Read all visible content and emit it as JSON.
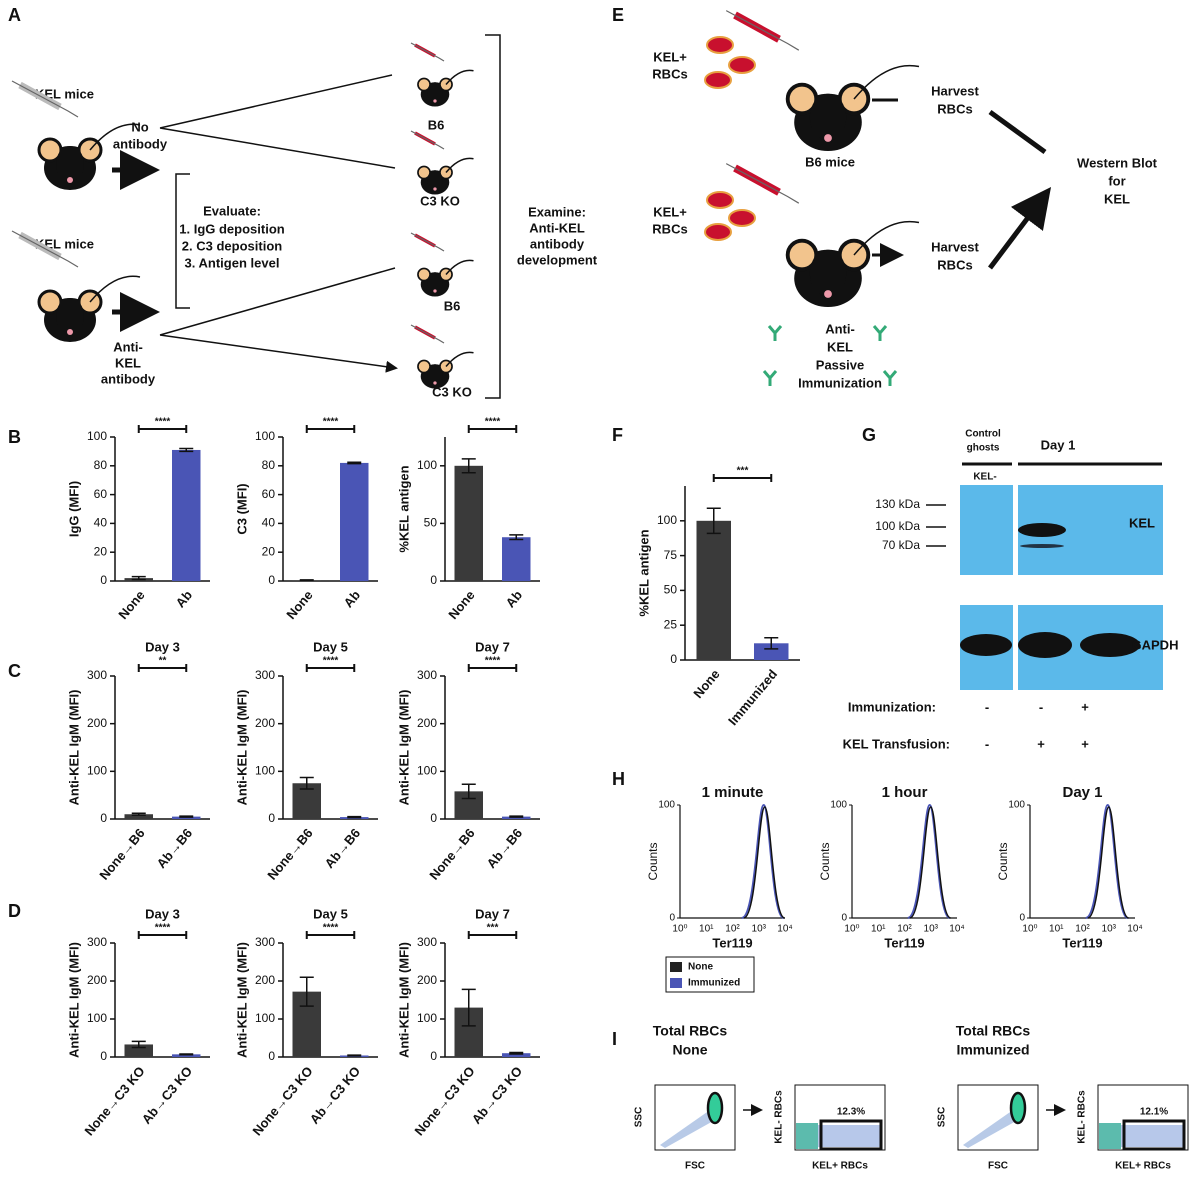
{
  "panel_labels": [
    "A",
    "B",
    "C",
    "D",
    "E",
    "F",
    "G",
    "H",
    "I"
  ],
  "panel_a": {
    "kel_mice": "KEL mice",
    "no_antibody": [
      "No",
      "antibody"
    ],
    "anti_kel_antibody": [
      "Anti-",
      "KEL",
      "antibody"
    ],
    "evaluate": [
      "Evaluate:",
      "1. IgG deposition",
      "2. C3 deposition",
      "3. Antigen level"
    ],
    "groups": [
      "B6",
      "C3 KO",
      "B6",
      "C3 KO"
    ],
    "examine": [
      "Examine:",
      "Anti-KEL",
      "antibody",
      "development"
    ]
  },
  "panel_e": {
    "kel_rbcs": [
      "KEL+",
      "RBCs"
    ],
    "b6_mice": "B6 mice",
    "harvest": [
      "Harvest",
      "RBCs"
    ],
    "western": [
      "Western Blot",
      "for",
      "KEL"
    ],
    "immunization": [
      "Anti-",
      "KEL",
      "Passive",
      "Immunization"
    ]
  },
  "chart_data": [
    {
      "type": "bar",
      "ylabel": "IgG (MFI)",
      "categories": [
        "None",
        "Ab"
      ],
      "values": [
        2,
        91
      ],
      "errors": [
        1,
        1
      ],
      "colors": [
        "#3a3a3a",
        "#4a55b5"
      ],
      "ylim": [
        0,
        100
      ],
      "yticks": [
        0,
        20,
        40,
        60,
        80,
        100
      ],
      "significance": "****"
    },
    {
      "type": "bar",
      "ylabel": "C3 (MFI)",
      "categories": [
        "None",
        "Ab"
      ],
      "values": [
        0.5,
        82
      ],
      "errors": [
        0.3,
        0.5
      ],
      "colors": [
        "#3a3a3a",
        "#4a55b5"
      ],
      "ylim": [
        0,
        100
      ],
      "yticks": [
        0,
        20,
        40,
        60,
        80,
        100
      ],
      "significance": "****"
    },
    {
      "type": "bar",
      "ylabel": "%KEL antigen",
      "categories": [
        "None",
        "Ab"
      ],
      "values": [
        100,
        38
      ],
      "errors": [
        6,
        2
      ],
      "colors": [
        "#3a3a3a",
        "#4a55b5"
      ],
      "ylim": [
        0,
        125
      ],
      "yticks": [
        0,
        50,
        100
      ],
      "significance": "****"
    },
    {
      "type": "bar",
      "title": "Day 3",
      "ylabel": "Anti-KEL IgM (MFI)",
      "categories": [
        "None→B6",
        "Ab→B6"
      ],
      "values": [
        10,
        5
      ],
      "errors": [
        2,
        1
      ],
      "colors": [
        "#3a3a3a",
        "#4a55b5"
      ],
      "ylim": [
        0,
        300
      ],
      "yticks": [
        0,
        100,
        200,
        300
      ],
      "significance": "**"
    },
    {
      "type": "bar",
      "title": "Day 5",
      "ylabel": "Anti-KEL IgM (MFI)",
      "categories": [
        "None→B6",
        "Ab→B6"
      ],
      "values": [
        75,
        4
      ],
      "errors": [
        12,
        1
      ],
      "colors": [
        "#3a3a3a",
        "#4a55b5"
      ],
      "ylim": [
        0,
        300
      ],
      "yticks": [
        0,
        100,
        200,
        300
      ],
      "significance": "****"
    },
    {
      "type": "bar",
      "title": "Day 7",
      "ylabel": "Anti-KEL  IgM (MFI)",
      "categories": [
        "None→B6",
        "Ab→B6"
      ],
      "values": [
        58,
        5
      ],
      "errors": [
        15,
        1
      ],
      "colors": [
        "#3a3a3a",
        "#4a55b5"
      ],
      "ylim": [
        0,
        300
      ],
      "yticks": [
        0,
        100,
        200,
        300
      ],
      "significance": "****"
    },
    {
      "type": "bar",
      "title": "Day 3",
      "ylabel": "Anti-KEL IgM (MFI)",
      "categories": [
        "None→C3 KO",
        "Ab→C3 KO"
      ],
      "values": [
        33,
        7
      ],
      "errors": [
        8,
        1
      ],
      "colors": [
        "#3a3a3a",
        "#4a55b5"
      ],
      "ylim": [
        0,
        300
      ],
      "yticks": [
        0,
        100,
        200,
        300
      ],
      "significance": "****"
    },
    {
      "type": "bar",
      "title": "Day 5",
      "ylabel": "Anti-KEL IgM (MFI)",
      "categories": [
        "None→C3 KO",
        "Ab→C3 KO"
      ],
      "values": [
        172,
        4
      ],
      "errors": [
        38,
        1
      ],
      "colors": [
        "#3a3a3a",
        "#4a55b5"
      ],
      "ylim": [
        0,
        300
      ],
      "yticks": [
        0,
        100,
        200,
        300
      ],
      "significance": "****"
    },
    {
      "type": "bar",
      "title": "Day 7",
      "ylabel": "Anti-KEL IgM (MFI)",
      "categories": [
        "None→C3 KO",
        "Ab→C3 KO"
      ],
      "values": [
        130,
        10
      ],
      "errors": [
        48,
        2
      ],
      "colors": [
        "#3a3a3a",
        "#4a55b5"
      ],
      "ylim": [
        0,
        300
      ],
      "yticks": [
        0,
        100,
        200,
        300
      ],
      "significance": "***"
    },
    {
      "type": "bar",
      "ylabel": "%KEL antigen",
      "categories": [
        "None",
        "Immunized"
      ],
      "values": [
        100,
        12
      ],
      "errors": [
        9,
        4
      ],
      "colors": [
        "#3a3a3a",
        "#4a55b5"
      ],
      "ylim": [
        0,
        125
      ],
      "yticks": [
        0,
        25,
        50,
        75,
        100
      ],
      "significance": "***"
    }
  ],
  "panel_g": {
    "control": [
      "Control",
      "ghosts"
    ],
    "kel_neg": "KEL-",
    "day": "Day 1",
    "markers": [
      "130 kDa",
      "100 kDa",
      "70 kDa"
    ],
    "kel": "KEL",
    "gapdh": "GAPDH",
    "immunization": "Immunization:",
    "transfusion": "KEL Transfusion:",
    "immunization_signs": [
      "-",
      "-",
      "+"
    ],
    "transfusion_signs": [
      "-",
      "+",
      "+"
    ]
  },
  "panel_h": {
    "titles": [
      "1 minute",
      "1 hour",
      "Day 1"
    ],
    "ylabel": "Counts",
    "xlabel": "Ter119",
    "yticks": [
      0,
      100
    ],
    "xticks": [
      "10⁰",
      "10¹",
      "10²",
      "10³",
      "10⁴"
    ],
    "legend": [
      "None",
      "Immunized"
    ]
  },
  "panel_i": {
    "titles": [
      [
        "Total RBCs",
        "None"
      ],
      [
        "Total RBCs",
        "Immunized"
      ]
    ],
    "ssc": "SSC",
    "fsc": "FSC",
    "kel_neg": "KEL- RBCs",
    "kel_pos": "KEL+ RBCs",
    "percent": [
      "12.3%",
      "12.1%"
    ]
  }
}
